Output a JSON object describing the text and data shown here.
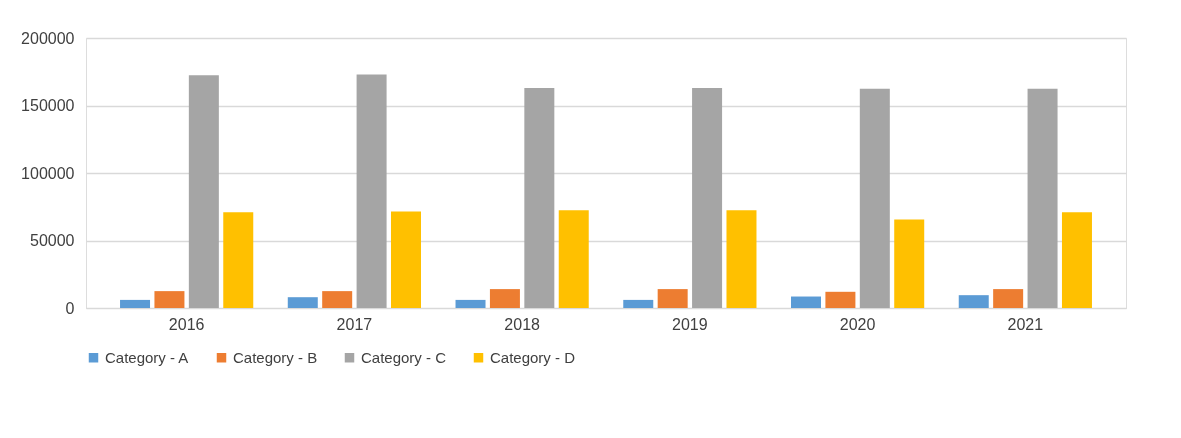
{
  "chart_data": {
    "type": "bar",
    "categories": [
      "2016",
      "2017",
      "2018",
      "2019",
      "2020",
      "2021"
    ],
    "series": [
      {
        "name": "Category - A",
        "color": "#5b9bd5",
        "values": [
          6000,
          8000,
          6000,
          6000,
          8500,
          9500
        ]
      },
      {
        "name": "Category - B",
        "color": "#ed7d31",
        "values": [
          12500,
          12500,
          14000,
          14000,
          12000,
          14000
        ]
      },
      {
        "name": "Category - C",
        "color": "#a5a5a5",
        "values": [
          172500,
          173000,
          163000,
          163000,
          162500,
          162500
        ]
      },
      {
        "name": "Category - D",
        "color": "#ffc000",
        "values": [
          71000,
          71500,
          72500,
          72500,
          65500,
          71000
        ]
      }
    ],
    "ylim": [
      0,
      200000
    ],
    "yticks": [
      0,
      50000,
      100000,
      150000,
      200000
    ],
    "grid": "y",
    "legend": "bottom"
  }
}
